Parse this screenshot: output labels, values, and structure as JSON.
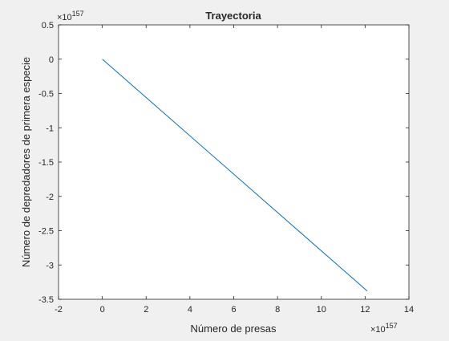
{
  "chart_data": {
    "type": "line",
    "title": "Trayectoria",
    "xlabel": "Número de presas",
    "ylabel": "Número de depredadores de primera especie",
    "x_exponent_label": "×10",
    "x_exponent_power": "157",
    "y_exponent_label": "×10",
    "y_exponent_power": "157",
    "xlim": [
      -2,
      14
    ],
    "ylim": [
      -3.5,
      0.5
    ],
    "xticks": [
      -2,
      0,
      2,
      4,
      6,
      8,
      10,
      12,
      14
    ],
    "yticks": [
      0.5,
      0,
      -0.5,
      -1,
      -1.5,
      -2,
      -2.5,
      -3,
      -3.5
    ],
    "xtick_labels": [
      "-2",
      "0",
      "2",
      "4",
      "6",
      "8",
      "10",
      "12",
      "14"
    ],
    "ytick_labels": [
      "0.5",
      "0",
      "-0.5",
      "-1",
      "-1.5",
      "-2",
      "-2.5",
      "-3",
      "-3.5"
    ],
    "grid": false,
    "series": [
      {
        "color": "#0072bd",
        "x": [
          0,
          12.1
        ],
        "y": [
          0,
          -3.38
        ]
      }
    ]
  }
}
